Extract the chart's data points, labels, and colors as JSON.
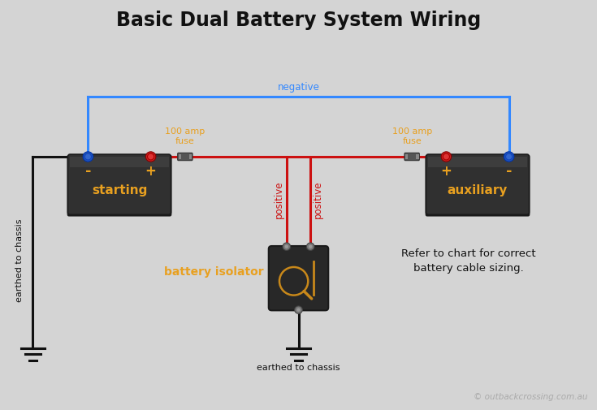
{
  "title": "Basic Dual Battery System Wiring",
  "title_fontsize": 17,
  "bg_color": "#d4d4d4",
  "blue_wire_color": "#3388ff",
  "red_wire_color": "#cc1111",
  "black_wire_color": "#111111",
  "battery_dark": "#2a2a2a",
  "battery_mid": "#3a3a3a",
  "battery_text_color": "#e8a020",
  "fuse_label_color": "#e8a020",
  "isolator_label_color": "#e8a020",
  "label_red_color": "#cc1111",
  "label_blue_color": "#3388ff",
  "note_color": "#111111",
  "copyright_color": "#aaaaaa",
  "starting_label": "starting",
  "auxiliary_label": "auxiliary",
  "fuse_label": "100 amp\nfuse",
  "battery_isolator_label": "battery isolator",
  "positive_label": "positive",
  "negative_label": "negative",
  "earthed_label_left": "earthed to chassis",
  "earthed_label_bottom": "earthed to chassis",
  "note_text": "Refer to chart for correct\nbattery cable sizing.",
  "copyright_text": "© outbackcrossing.com.au",
  "lw_wire": 2.2,
  "lw_thick": 2.8
}
